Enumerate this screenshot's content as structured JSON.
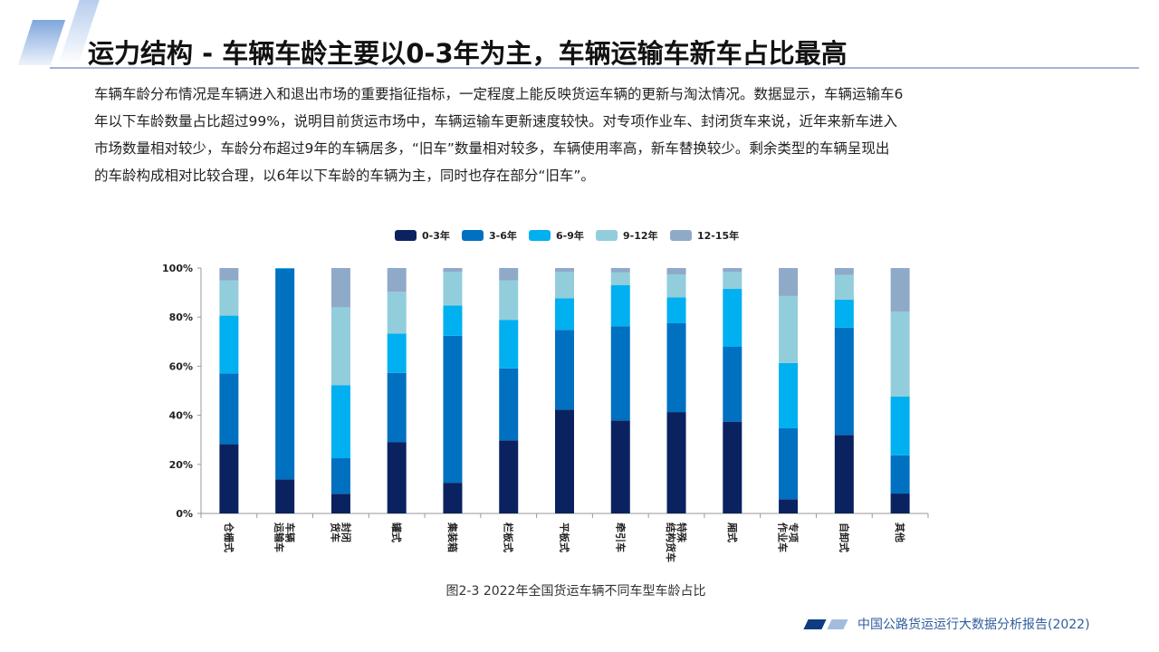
{
  "header": {
    "title": "运力结构 - 车辆车龄主要以0-3年为主，车辆运输车新车占比最高"
  },
  "body": {
    "lines": [
      "车辆车龄分布情况是车辆进入和退出市场的重要指征指标，一定程度上能反映货运车辆的更新与淘汰情况。数据显示，车辆运输车6",
      "年以下车龄数量占比超过99%，说明目前货运市场中，车辆运输车更新速度较快。对专项作业车、封闭货车来说，近年来新车进入",
      "市场数量相对较少，车龄分布超过9年的车辆居多，“旧车”数量相对较多，车辆使用率高，新车替换较少。剩余类型的车辆呈现出",
      "的车龄构成相对比较合理，以6年以下车龄的车辆为主，同时也存在部分“旧车”。"
    ]
  },
  "chart_data": {
    "type": "bar",
    "stacked": true,
    "percent_stacked": true,
    "title": "",
    "caption": "图2-3 2022年全国货运车辆不同车型车龄占比",
    "xlabel": "",
    "ylabel": "",
    "ylim": [
      0,
      100
    ],
    "y_ticks": [
      "0%",
      "20%",
      "40%",
      "60%",
      "80%",
      "100%"
    ],
    "grid": false,
    "legend_position": "top",
    "categories": [
      "仓栅式",
      "车辆运输车",
      "封闭货车",
      "罐式",
      "集装箱",
      "栏板式",
      "平板式",
      "牵引车",
      "特殊结构货车",
      "厢式",
      "专项作业车",
      "自卸式",
      "其他"
    ],
    "category_display": [
      [
        "仓栅式"
      ],
      [
        "车辆",
        "运输车"
      ],
      [
        "封闭",
        "货车"
      ],
      [
        "罐式"
      ],
      [
        "集装箱"
      ],
      [
        "栏板式"
      ],
      [
        "平板式"
      ],
      [
        "牵引车"
      ],
      [
        "特殊",
        "结构货车"
      ],
      [
        "厢式"
      ],
      [
        "专项",
        "作业车"
      ],
      [
        "自卸式"
      ],
      [
        "其他"
      ]
    ],
    "series": [
      {
        "name": "0-3年",
        "color": "#0a2260",
        "values": [
          28.2,
          13.9,
          8.0,
          29.1,
          12.5,
          29.8,
          42.3,
          37.9,
          41.3,
          37.4,
          5.8,
          32.0,
          8.1
        ]
      },
      {
        "name": "3-6年",
        "color": "#0070c0",
        "values": [
          28.9,
          85.8,
          14.5,
          28.2,
          59.9,
          29.3,
          32.5,
          38.4,
          36.2,
          30.5,
          28.9,
          43.7,
          15.6
        ]
      },
      {
        "name": "6-9年",
        "color": "#00b0f0",
        "values": [
          23.5,
          0.3,
          29.8,
          16.0,
          12.3,
          19.8,
          12.9,
          16.8,
          10.5,
          23.6,
          26.6,
          11.4,
          23.9
        ]
      },
      {
        "name": "9-12年",
        "color": "#92cddc",
        "values": [
          14.4,
          0.0,
          31.7,
          17.0,
          13.8,
          16.1,
          10.8,
          5.1,
          9.4,
          7.0,
          27.3,
          10.1,
          34.7
        ]
      },
      {
        "name": "12-15年",
        "color": "#8fa9c9",
        "values": [
          5.0,
          0.0,
          16.0,
          9.7,
          1.5,
          5.0,
          1.5,
          1.8,
          2.6,
          1.5,
          11.4,
          2.8,
          17.7
        ]
      }
    ]
  },
  "footer": {
    "report_name": "中国公路货运运行大数据分析报告(2022)"
  }
}
